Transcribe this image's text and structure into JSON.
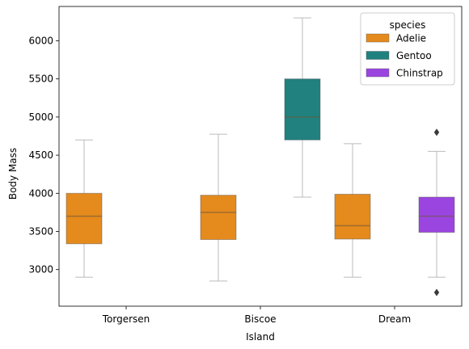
{
  "chart_data": {
    "type": "box",
    "xlabel": "Island",
    "ylabel": "Body Mass",
    "categories": [
      "Torgersen",
      "Biscoe",
      "Dream"
    ],
    "ylim": [
      2520,
      6450
    ],
    "yticks": [
      3000,
      3500,
      4000,
      4500,
      5000,
      5500,
      6000
    ],
    "legend": {
      "title": "species",
      "placement": "top-right",
      "entries": [
        "Adelie",
        "Gentoo",
        "Chinstrap"
      ]
    },
    "series": [
      {
        "name": "Adelie",
        "color": "#E58A1C",
        "boxes": [
          {
            "category": "Torgersen",
            "min": 2900,
            "q1": 3338,
            "median": 3700,
            "q3": 4000,
            "max": 4700,
            "outliers": []
          },
          {
            "category": "Biscoe",
            "min": 2850,
            "q1": 3394,
            "median": 3750,
            "q3": 3975,
            "max": 4775,
            "outliers": []
          },
          {
            "category": "Dream",
            "min": 2900,
            "q1": 3400,
            "median": 3575,
            "q3": 3988,
            "max": 4650,
            "outliers": []
          }
        ]
      },
      {
        "name": "Gentoo",
        "color": "#20817F",
        "boxes": [
          {
            "category": "Biscoe",
            "min": 3950,
            "q1": 4700,
            "median": 5000,
            "q3": 5500,
            "max": 6300,
            "outliers": []
          }
        ]
      },
      {
        "name": "Chinstrap",
        "color": "#9B45E0",
        "boxes": [
          {
            "category": "Dream",
            "min": 2900,
            "q1": 3488,
            "median": 3700,
            "q3": 3950,
            "max": 4550,
            "outliers": [
              4800,
              2700
            ]
          }
        ]
      }
    ]
  }
}
